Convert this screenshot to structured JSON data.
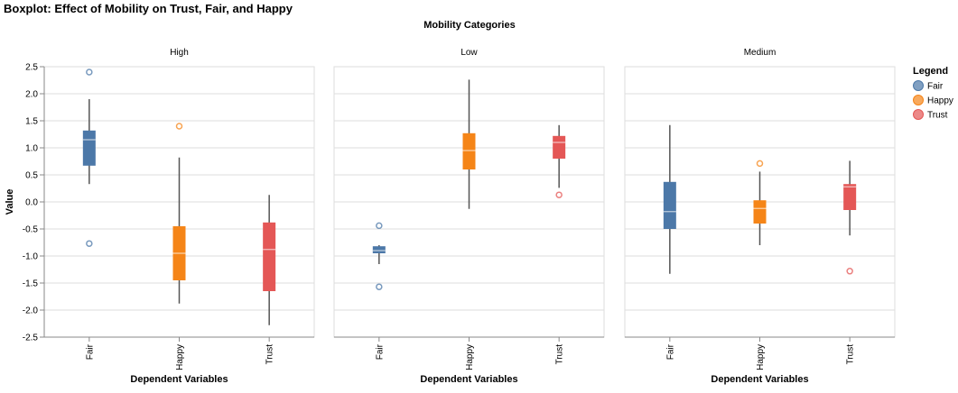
{
  "chart_data": {
    "type": "boxplot",
    "title": "Boxplot: Effect of Mobility on Trust, Fair, and Happy",
    "facet_title": "Mobility Categories",
    "facets": [
      "High",
      "Low",
      "Medium"
    ],
    "categories": [
      "Fair",
      "Happy",
      "Trust"
    ],
    "xlabel": "Dependent Variables",
    "ylabel": "Value",
    "ylim": [
      -2.5,
      2.5
    ],
    "yticks": [
      2.5,
      2.0,
      1.5,
      1.0,
      0.5,
      0.0,
      -0.5,
      -1.0,
      -1.5,
      -2.0,
      -2.5
    ],
    "ytick_labels": [
      "2.5",
      "2.0",
      "1.5",
      "1.0",
      "0.5",
      "0.0",
      "-0.5",
      "-1.0",
      "-1.5",
      "-2.0",
      "-2.5"
    ],
    "grid": true,
    "legend": {
      "title": "Legend",
      "placement": "right",
      "items": [
        {
          "label": "Fair",
          "color": "#4c78a8"
        },
        {
          "label": "Happy",
          "color": "#f58518"
        },
        {
          "label": "Trust",
          "color": "#e45756"
        }
      ]
    },
    "colors": {
      "Fair": "#4c78a8",
      "Happy": "#f58518",
      "Trust": "#e45756"
    },
    "boxes": {
      "High": {
        "Fair": {
          "lower_whisker": 0.33,
          "q1": 0.67,
          "median": 1.15,
          "q3": 1.32,
          "upper_whisker": 1.9,
          "outliers": [
            2.4,
            -0.77
          ]
        },
        "Happy": {
          "lower_whisker": -1.88,
          "q1": -1.45,
          "median": -0.95,
          "q3": -0.45,
          "upper_whisker": 0.82,
          "outliers": [
            1.4
          ]
        },
        "Trust": {
          "lower_whisker": -2.28,
          "q1": -1.65,
          "median": -0.88,
          "q3": -0.38,
          "upper_whisker": 0.13,
          "outliers": []
        }
      },
      "Low": {
        "Fair": {
          "lower_whisker": -1.15,
          "q1": -0.95,
          "median": -0.9,
          "q3": -0.82,
          "upper_whisker": -0.8,
          "outliers": [
            -0.44,
            -1.57
          ]
        },
        "Happy": {
          "lower_whisker": -0.13,
          "q1": 0.6,
          "median": 0.95,
          "q3": 1.27,
          "upper_whisker": 2.26,
          "outliers": []
        },
        "Trust": {
          "lower_whisker": 0.26,
          "q1": 0.8,
          "median": 1.1,
          "q3": 1.22,
          "upper_whisker": 1.42,
          "outliers": [
            0.13
          ]
        }
      },
      "Medium": {
        "Fair": {
          "lower_whisker": -1.33,
          "q1": -0.5,
          "median": -0.18,
          "q3": 0.37,
          "upper_whisker": 1.42,
          "outliers": []
        },
        "Happy": {
          "lower_whisker": -0.8,
          "q1": -0.4,
          "median": -0.12,
          "q3": 0.03,
          "upper_whisker": 0.56,
          "outliers": [
            0.71
          ]
        },
        "Trust": {
          "lower_whisker": -0.62,
          "q1": -0.15,
          "median": 0.28,
          "q3": 0.33,
          "upper_whisker": 0.76,
          "outliers": [
            -1.28
          ]
        }
      }
    }
  }
}
